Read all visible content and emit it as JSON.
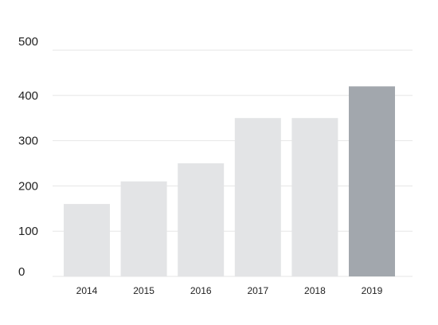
{
  "chart_data": {
    "type": "bar",
    "categories": [
      "2014",
      "2015",
      "2016",
      "2017",
      "2018",
      "2019"
    ],
    "values": [
      160,
      210,
      250,
      350,
      350,
      420
    ],
    "ylim": [
      0,
      500
    ],
    "yticks": [
      0,
      100,
      200,
      300,
      400,
      500
    ],
    "ytick_labels": [
      "0",
      "100",
      "200",
      "300",
      "400",
      "500"
    ],
    "grid": true,
    "highlight_index": 5,
    "colors": {
      "bar": "#e3e4e6",
      "highlight": "#a2a7ad",
      "grid": "#e6e6e6",
      "text": "#222222"
    }
  }
}
